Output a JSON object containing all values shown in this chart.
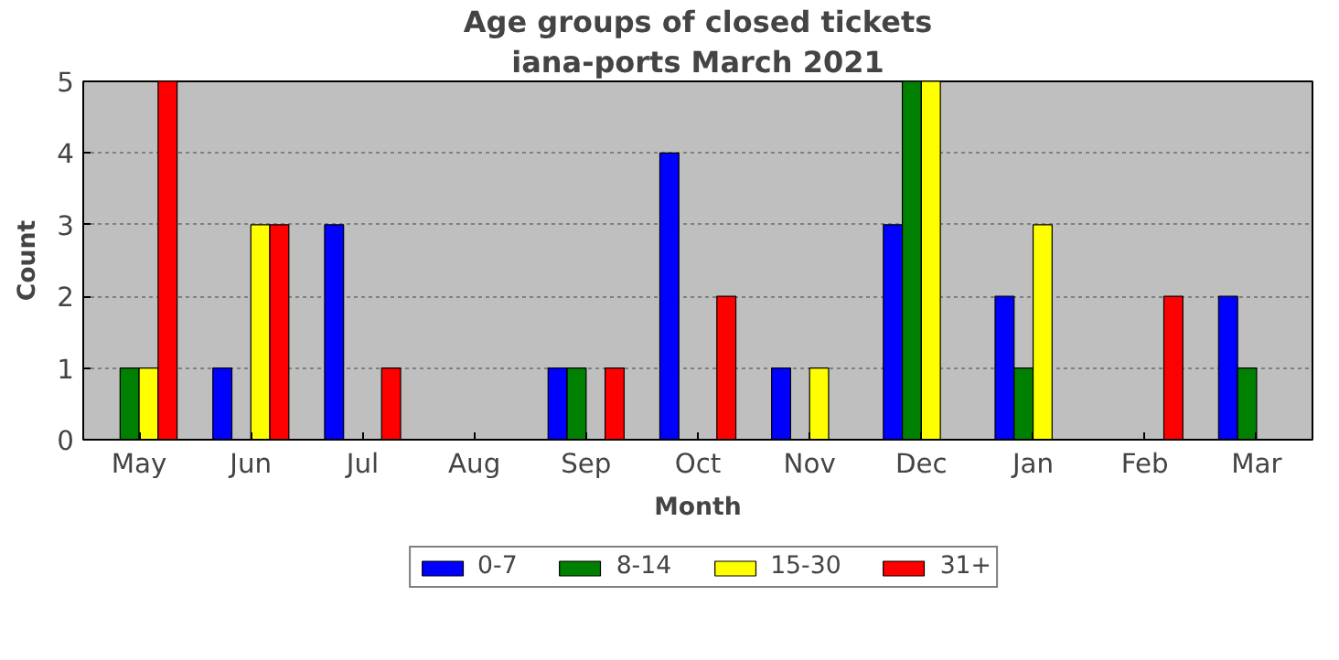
{
  "chart_data": {
    "type": "bar",
    "title": "Age groups of closed tickets",
    "subtitle": "iana-ports March 2021",
    "xlabel": "Month",
    "ylabel": "Count",
    "categories": [
      "May",
      "Jun",
      "Jul",
      "Aug",
      "Sep",
      "Oct",
      "Nov",
      "Dec",
      "Jan",
      "Feb",
      "Mar"
    ],
    "series": [
      {
        "name": "0-7",
        "color": "#0000ff",
        "values": [
          0,
          1,
          3,
          0,
          1,
          4,
          1,
          3,
          2,
          0,
          2
        ]
      },
      {
        "name": "8-14",
        "color": "#008000",
        "values": [
          1,
          0,
          0,
          0,
          1,
          0,
          0,
          5,
          1,
          0,
          1
        ]
      },
      {
        "name": "15-30",
        "color": "#ffff00",
        "values": [
          1,
          3,
          0,
          0,
          0,
          0,
          1,
          5,
          3,
          0,
          0
        ]
      },
      {
        "name": "31+",
        "color": "#ff0000",
        "values": [
          5,
          3,
          1,
          0,
          1,
          2,
          0,
          0,
          0,
          2,
          0
        ]
      }
    ],
    "ylim": [
      0,
      5
    ],
    "yticks": [
      0,
      1,
      2,
      3,
      4,
      5
    ],
    "grid": "y",
    "legend": "bottom"
  }
}
